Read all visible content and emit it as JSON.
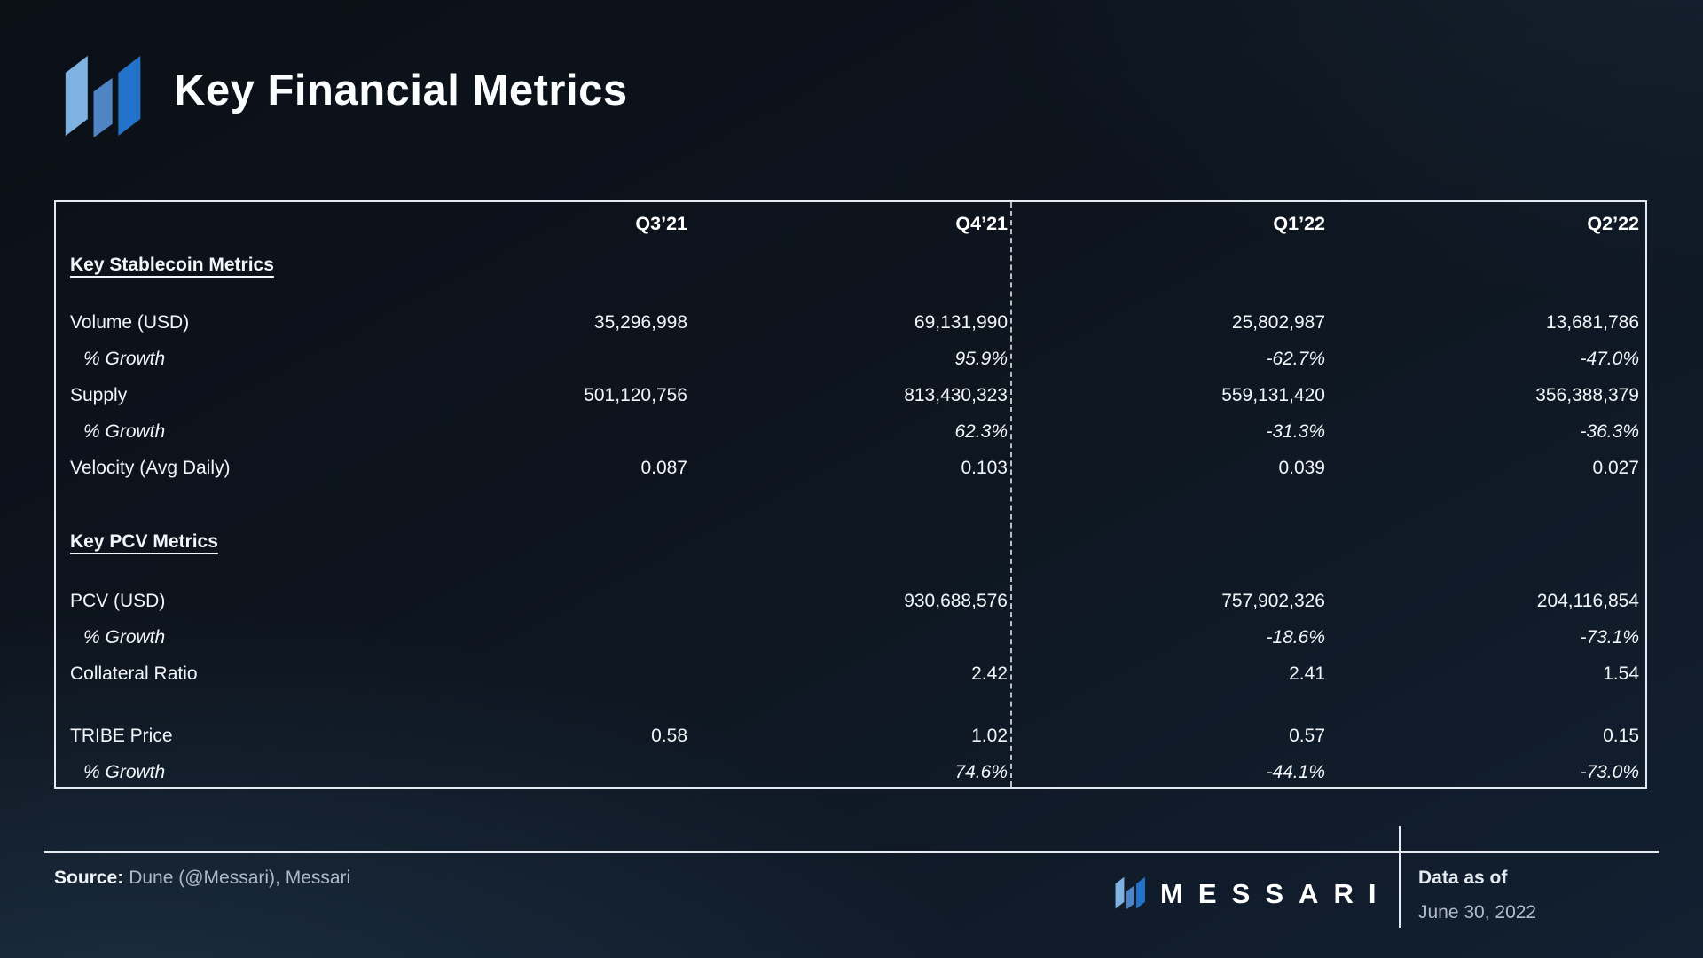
{
  "title": "Key Financial Metrics",
  "table": {
    "columns": [
      "Q3’21",
      "Q4’21",
      "Q1’22",
      "Q2’22"
    ],
    "rows": [
      {
        "kind": "section",
        "label": "Key Stablecoin Metrics"
      },
      {
        "kind": "gap",
        "variant": "a"
      },
      {
        "kind": "metric",
        "label": "Volume (USD)",
        "values": [
          "35,296,998",
          "69,131,990",
          "25,802,987",
          "13,681,786"
        ]
      },
      {
        "kind": "growth",
        "label": "% Growth",
        "values": [
          "",
          "95.9%",
          "-62.7%",
          "-47.0%"
        ]
      },
      {
        "kind": "metric",
        "label": "Supply",
        "values": [
          "501,120,756",
          "813,430,323",
          "559,131,420",
          "356,388,379"
        ]
      },
      {
        "kind": "growth",
        "label": "% Growth",
        "values": [
          "",
          "62.3%",
          "-31.3%",
          "-36.3%"
        ]
      },
      {
        "kind": "metric",
        "label": "Velocity (Avg Daily)",
        "values": [
          "0.087",
          "0.103",
          "0.039",
          "0.027"
        ]
      },
      {
        "kind": "gap",
        "variant": "b"
      },
      {
        "kind": "section",
        "label": "Key PCV Metrics"
      },
      {
        "kind": "gap",
        "variant": "c"
      },
      {
        "kind": "metric",
        "label": "PCV (USD)",
        "values": [
          "",
          "930,688,576",
          "757,902,326",
          "204,116,854"
        ]
      },
      {
        "kind": "growth",
        "label": "% Growth",
        "values": [
          "",
          "",
          "-18.6%",
          "-73.1%"
        ]
      },
      {
        "kind": "metric",
        "label": "Collateral Ratio",
        "values": [
          "",
          "2.42",
          "2.41",
          "1.54"
        ]
      },
      {
        "kind": "gap",
        "variant": "d"
      },
      {
        "kind": "metric",
        "label": "TRIBE Price",
        "values": [
          "0.58",
          "1.02",
          "0.57",
          "0.15"
        ]
      },
      {
        "kind": "growth",
        "label": "% Growth",
        "values": [
          "",
          "74.6%",
          "-44.1%",
          "-73.0%"
        ]
      }
    ]
  },
  "footer": {
    "source_label": "Source:",
    "source_text": "Dune (@Messari), Messari",
    "brand_wordmark": "MESSARI",
    "data_as_of_label": "Data as of",
    "data_as_of_date": "June 30, 2022"
  },
  "colors": {
    "logo_light_blue": "#7fb2e0",
    "logo_mid_blue": "#4f85c5",
    "logo_dark_blue": "#2273c9",
    "line_white": "#e6ecf2"
  }
}
